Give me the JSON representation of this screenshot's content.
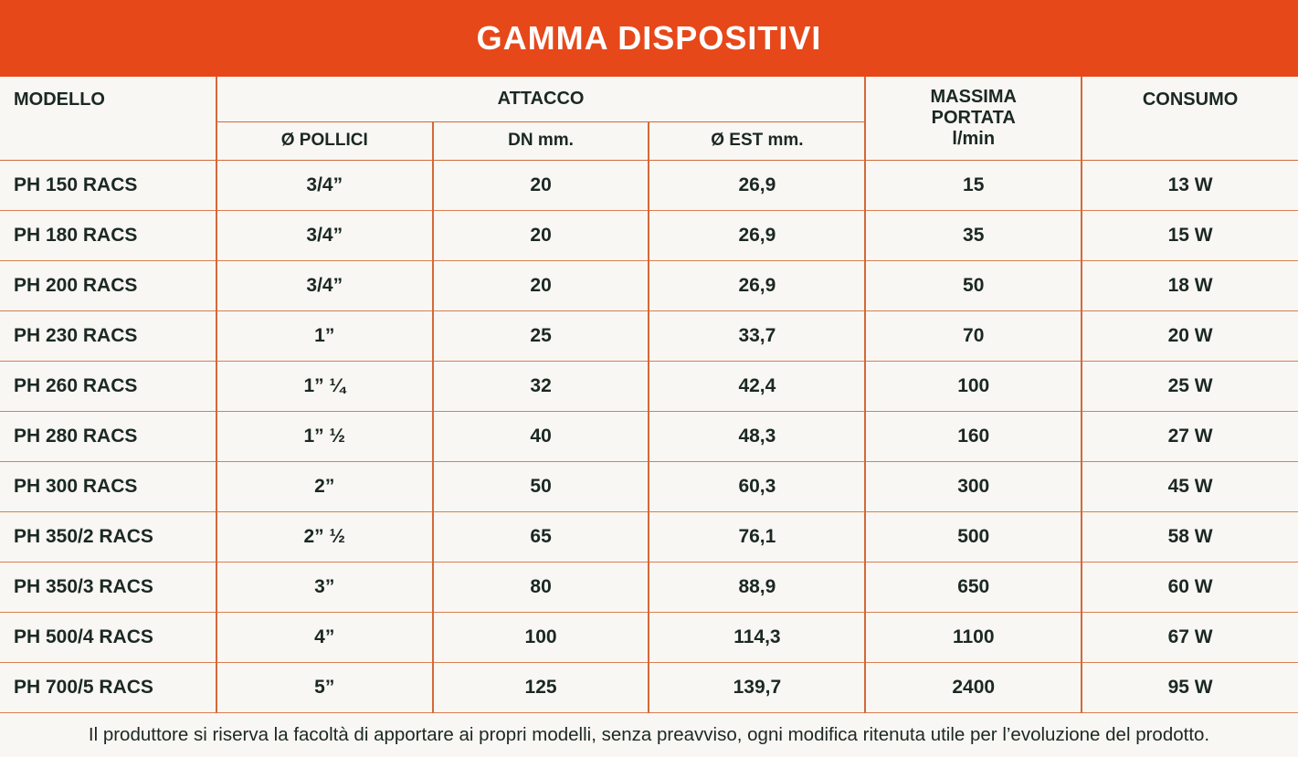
{
  "banner": {
    "title": "GAMMA DISPOSITIVI",
    "bg_color": "#E6481A",
    "text_color": "#FFFFFF"
  },
  "table": {
    "border_color": "#D2693A",
    "text_color": "#1B2823",
    "header": {
      "modello": "MODELLO",
      "attacco": "ATTACCO",
      "attacco_sub": [
        "Ø POLLICI",
        "DN mm.",
        "Ø EST mm."
      ],
      "massima_portata_lines": [
        "MASSIMA",
        "PORTATA",
        "l/min"
      ],
      "consumo": "CONSUMO"
    },
    "rows": [
      {
        "modello": "PH 150 RACS",
        "pollici": "3/4”",
        "dn": "20",
        "est": "26,9",
        "portata": "15",
        "consumo": "13 W"
      },
      {
        "modello": "PH 180 RACS",
        "pollici": "3/4”",
        "dn": "20",
        "est": "26,9",
        "portata": "35",
        "consumo": "15 W"
      },
      {
        "modello": "PH 200 RACS",
        "pollici": "3/4”",
        "dn": "20",
        "est": "26,9",
        "portata": "50",
        "consumo": "18 W"
      },
      {
        "modello": "PH 230 RACS",
        "pollici": "1”",
        "dn": "25",
        "est": "33,7",
        "portata": "70",
        "consumo": "20 W"
      },
      {
        "modello": "PH 260 RACS",
        "pollici": "1” ¼",
        "dn": "32",
        "est": "42,4",
        "portata": "100",
        "consumo": "25 W"
      },
      {
        "modello": "PH 280 RACS",
        "pollici": "1” ½",
        "dn": "40",
        "est": "48,3",
        "portata": "160",
        "consumo": "27 W"
      },
      {
        "modello": "PH 300 RACS",
        "pollici": "2”",
        "dn": "50",
        "est": "60,3",
        "portata": "300",
        "consumo": "45 W"
      },
      {
        "modello": "PH 350/2 RACS",
        "pollici": "2” ½",
        "dn": "65",
        "est": "76,1",
        "portata": "500",
        "consumo": "58 W"
      },
      {
        "modello": "PH 350/3 RACS",
        "pollici": "3”",
        "dn": "80",
        "est": "88,9",
        "portata": "650",
        "consumo": "60 W"
      },
      {
        "modello": "PH 500/4 RACS",
        "pollici": "4”",
        "dn": "100",
        "est": "114,3",
        "portata": "1100",
        "consumo": "67 W"
      },
      {
        "modello": "PH 700/5 RACS",
        "pollici": "5”",
        "dn": "125",
        "est": "139,7",
        "portata": "2400",
        "consumo": "95 W"
      }
    ]
  },
  "footer": {
    "note": "Il produttore si riserva la facoltà di apportare ai propri modelli, senza preavviso, ogni modifica ritenuta utile per l’evoluzione del prodotto."
  }
}
